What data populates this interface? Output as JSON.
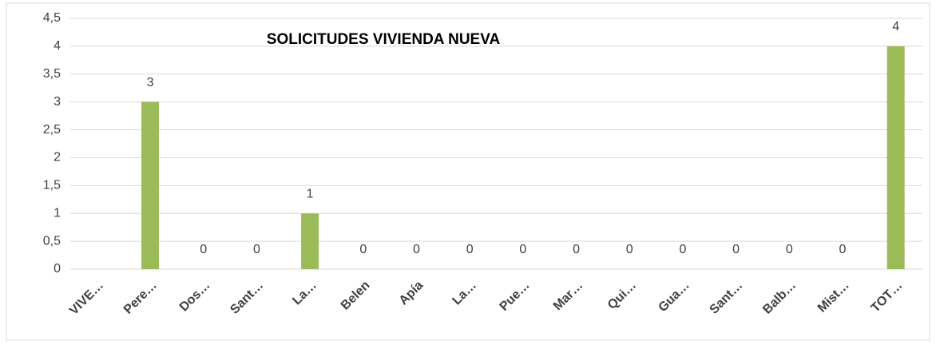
{
  "chart_data": {
    "type": "bar",
    "title": "SOLICITUDES  VIVIENDA NUEVA",
    "categories": [
      "VIVE…",
      "Pere…",
      "Dos…",
      "Sant…",
      "La…",
      "Belen",
      "Apía",
      "La…",
      "Pue…",
      "Mar…",
      "Qui…",
      "Gua…",
      "Sant…",
      "Balb…",
      "Mist…",
      "TOT…"
    ],
    "values": [
      null,
      3,
      0,
      0,
      1,
      0,
      0,
      0,
      0,
      0,
      0,
      0,
      0,
      0,
      0,
      4
    ],
    "color": "#9bbb59",
    "ylim": [
      0,
      4.5
    ],
    "yticks": [
      0,
      {
        "value": 0.5,
        "label": "0,5"
      },
      1,
      {
        "value": 1.5,
        "label": "1,5"
      },
      2,
      {
        "value": 2.5,
        "label": "2,5"
      },
      3,
      {
        "value": 3.5,
        "label": "3,5"
      },
      4,
      {
        "value": 4.5,
        "label": "4,5"
      }
    ],
    "grid": true
  }
}
